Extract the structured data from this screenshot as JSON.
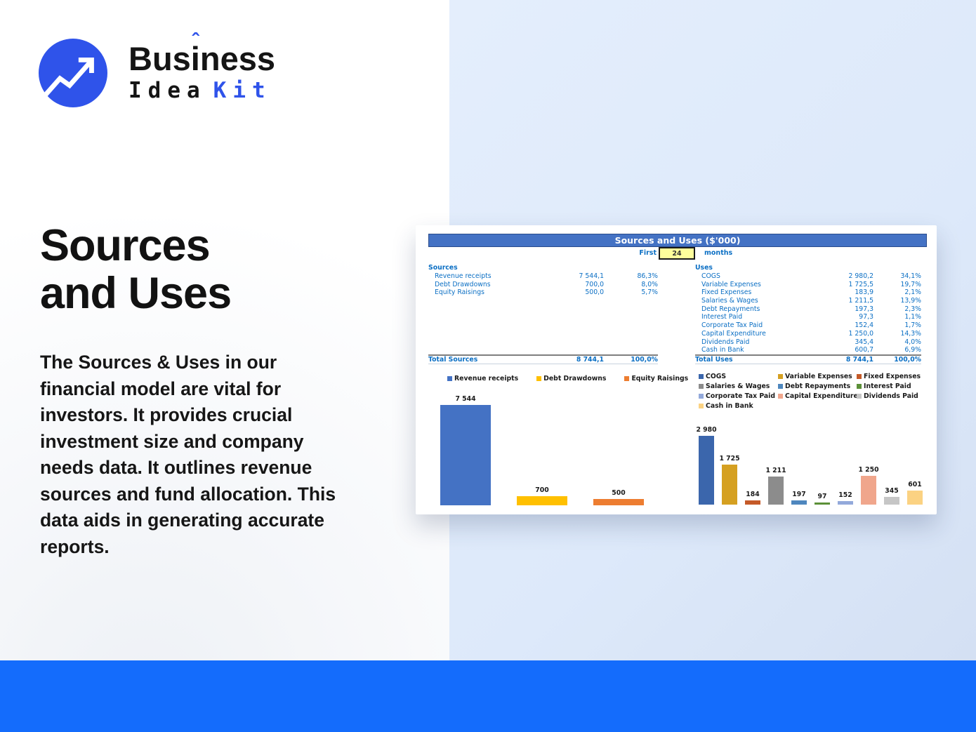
{
  "logo": {
    "part1": "Bus",
    "part2": "i",
    "part3": "ness",
    "accent": "ˆ",
    "word_idea": "Idea",
    "word_kit": "Kit",
    "brand_blue": "#2f53ea"
  },
  "hero": {
    "title_line1": "Sources",
    "title_line2": "and Uses",
    "description": "The Sources & Uses in our financial model are vital for investors. It provides crucial investment size and company needs data. It outlines revenue sources and fund allocation. This data aids in generating accurate reports."
  },
  "report": {
    "title": "Sources and Uses ($'000)",
    "period": {
      "prefix": "First",
      "value": "24",
      "suffix": "months"
    },
    "sources_table": {
      "header": "Sources",
      "rows": [
        {
          "label": "Revenue receipts",
          "value": "7 544,1",
          "pct": "86,3%"
        },
        {
          "label": "Debt Drawdowns",
          "value": "700,0",
          "pct": "8,0%"
        },
        {
          "label": "Equity Raisings",
          "value": "500,0",
          "pct": "5,7%"
        }
      ],
      "total": {
        "label": "Total Sources",
        "value": "8 744,1",
        "pct": "100,0%"
      }
    },
    "uses_table": {
      "header": "Uses",
      "rows": [
        {
          "label": "COGS",
          "value": "2 980,2",
          "pct": "34,1%"
        },
        {
          "label": "Variable Expenses",
          "value": "1 725,5",
          "pct": "19,7%"
        },
        {
          "label": "Fixed Expenses",
          "value": "183,9",
          "pct": "2,1%"
        },
        {
          "label": "Salaries & Wages",
          "value": "1 211,5",
          "pct": "13,9%"
        },
        {
          "label": "Debt Repayments",
          "value": "197,3",
          "pct": "2,3%"
        },
        {
          "label": "Interest Paid",
          "value": "97,3",
          "pct": "1,1%"
        },
        {
          "label": "Corporate Tax Paid",
          "value": "152,4",
          "pct": "1,7%"
        },
        {
          "label": "Capital Expenditure",
          "value": "1 250,0",
          "pct": "14,3%"
        },
        {
          "label": "Dividends Paid",
          "value": "345,4",
          "pct": "4,0%"
        },
        {
          "label": "Cash in Bank",
          "value": "600,7",
          "pct": "6,9%"
        }
      ],
      "total": {
        "label": "Total Uses",
        "value": "8 744,1",
        "pct": "100,0%"
      }
    }
  },
  "chart_data": [
    {
      "type": "bar",
      "title": "Sources",
      "categories": [
        "Revenue receipts",
        "Debt Drawdowns",
        "Equity Raisings"
      ],
      "values": [
        7544,
        700,
        500
      ],
      "labels": [
        "7 544",
        "700",
        "500"
      ],
      "colors": [
        "#4472c4",
        "#ffc000",
        "#ed7d31"
      ],
      "legend_position": "top",
      "grid": false,
      "axes_hidden": true
    },
    {
      "type": "bar",
      "title": "Uses",
      "categories": [
        "COGS",
        "Variable Expenses",
        "Fixed Expenses",
        "Salaries & Wages",
        "Debt Repayments",
        "Interest Paid",
        "Corporate Tax Paid",
        "Capital Expenditure",
        "Dividends Paid",
        "Cash in Bank"
      ],
      "values": [
        2980,
        1725,
        184,
        1211,
        197,
        97,
        152,
        1250,
        345,
        601
      ],
      "labels": [
        "2 980",
        "1 725",
        "184",
        "1 211",
        "197",
        "97",
        "152",
        "1 250",
        "345",
        "601"
      ],
      "colors": [
        "#3b66ac",
        "#d5a021",
        "#c55a28",
        "#8c8c8c",
        "#4e87be",
        "#5b9038",
        "#93a9db",
        "#f0a68c",
        "#c6c6c6",
        "#fbd282"
      ],
      "legend_position": "top",
      "grid": false,
      "axes_hidden": true
    }
  ],
  "colors": {
    "accent_bar": "#146cfc",
    "panel_light_blue": "#dde9fa",
    "sheet_header_blue": "#4472c4",
    "table_text_blue": "#0b6fc4",
    "input_cell_yellow": "#ffff9c"
  }
}
